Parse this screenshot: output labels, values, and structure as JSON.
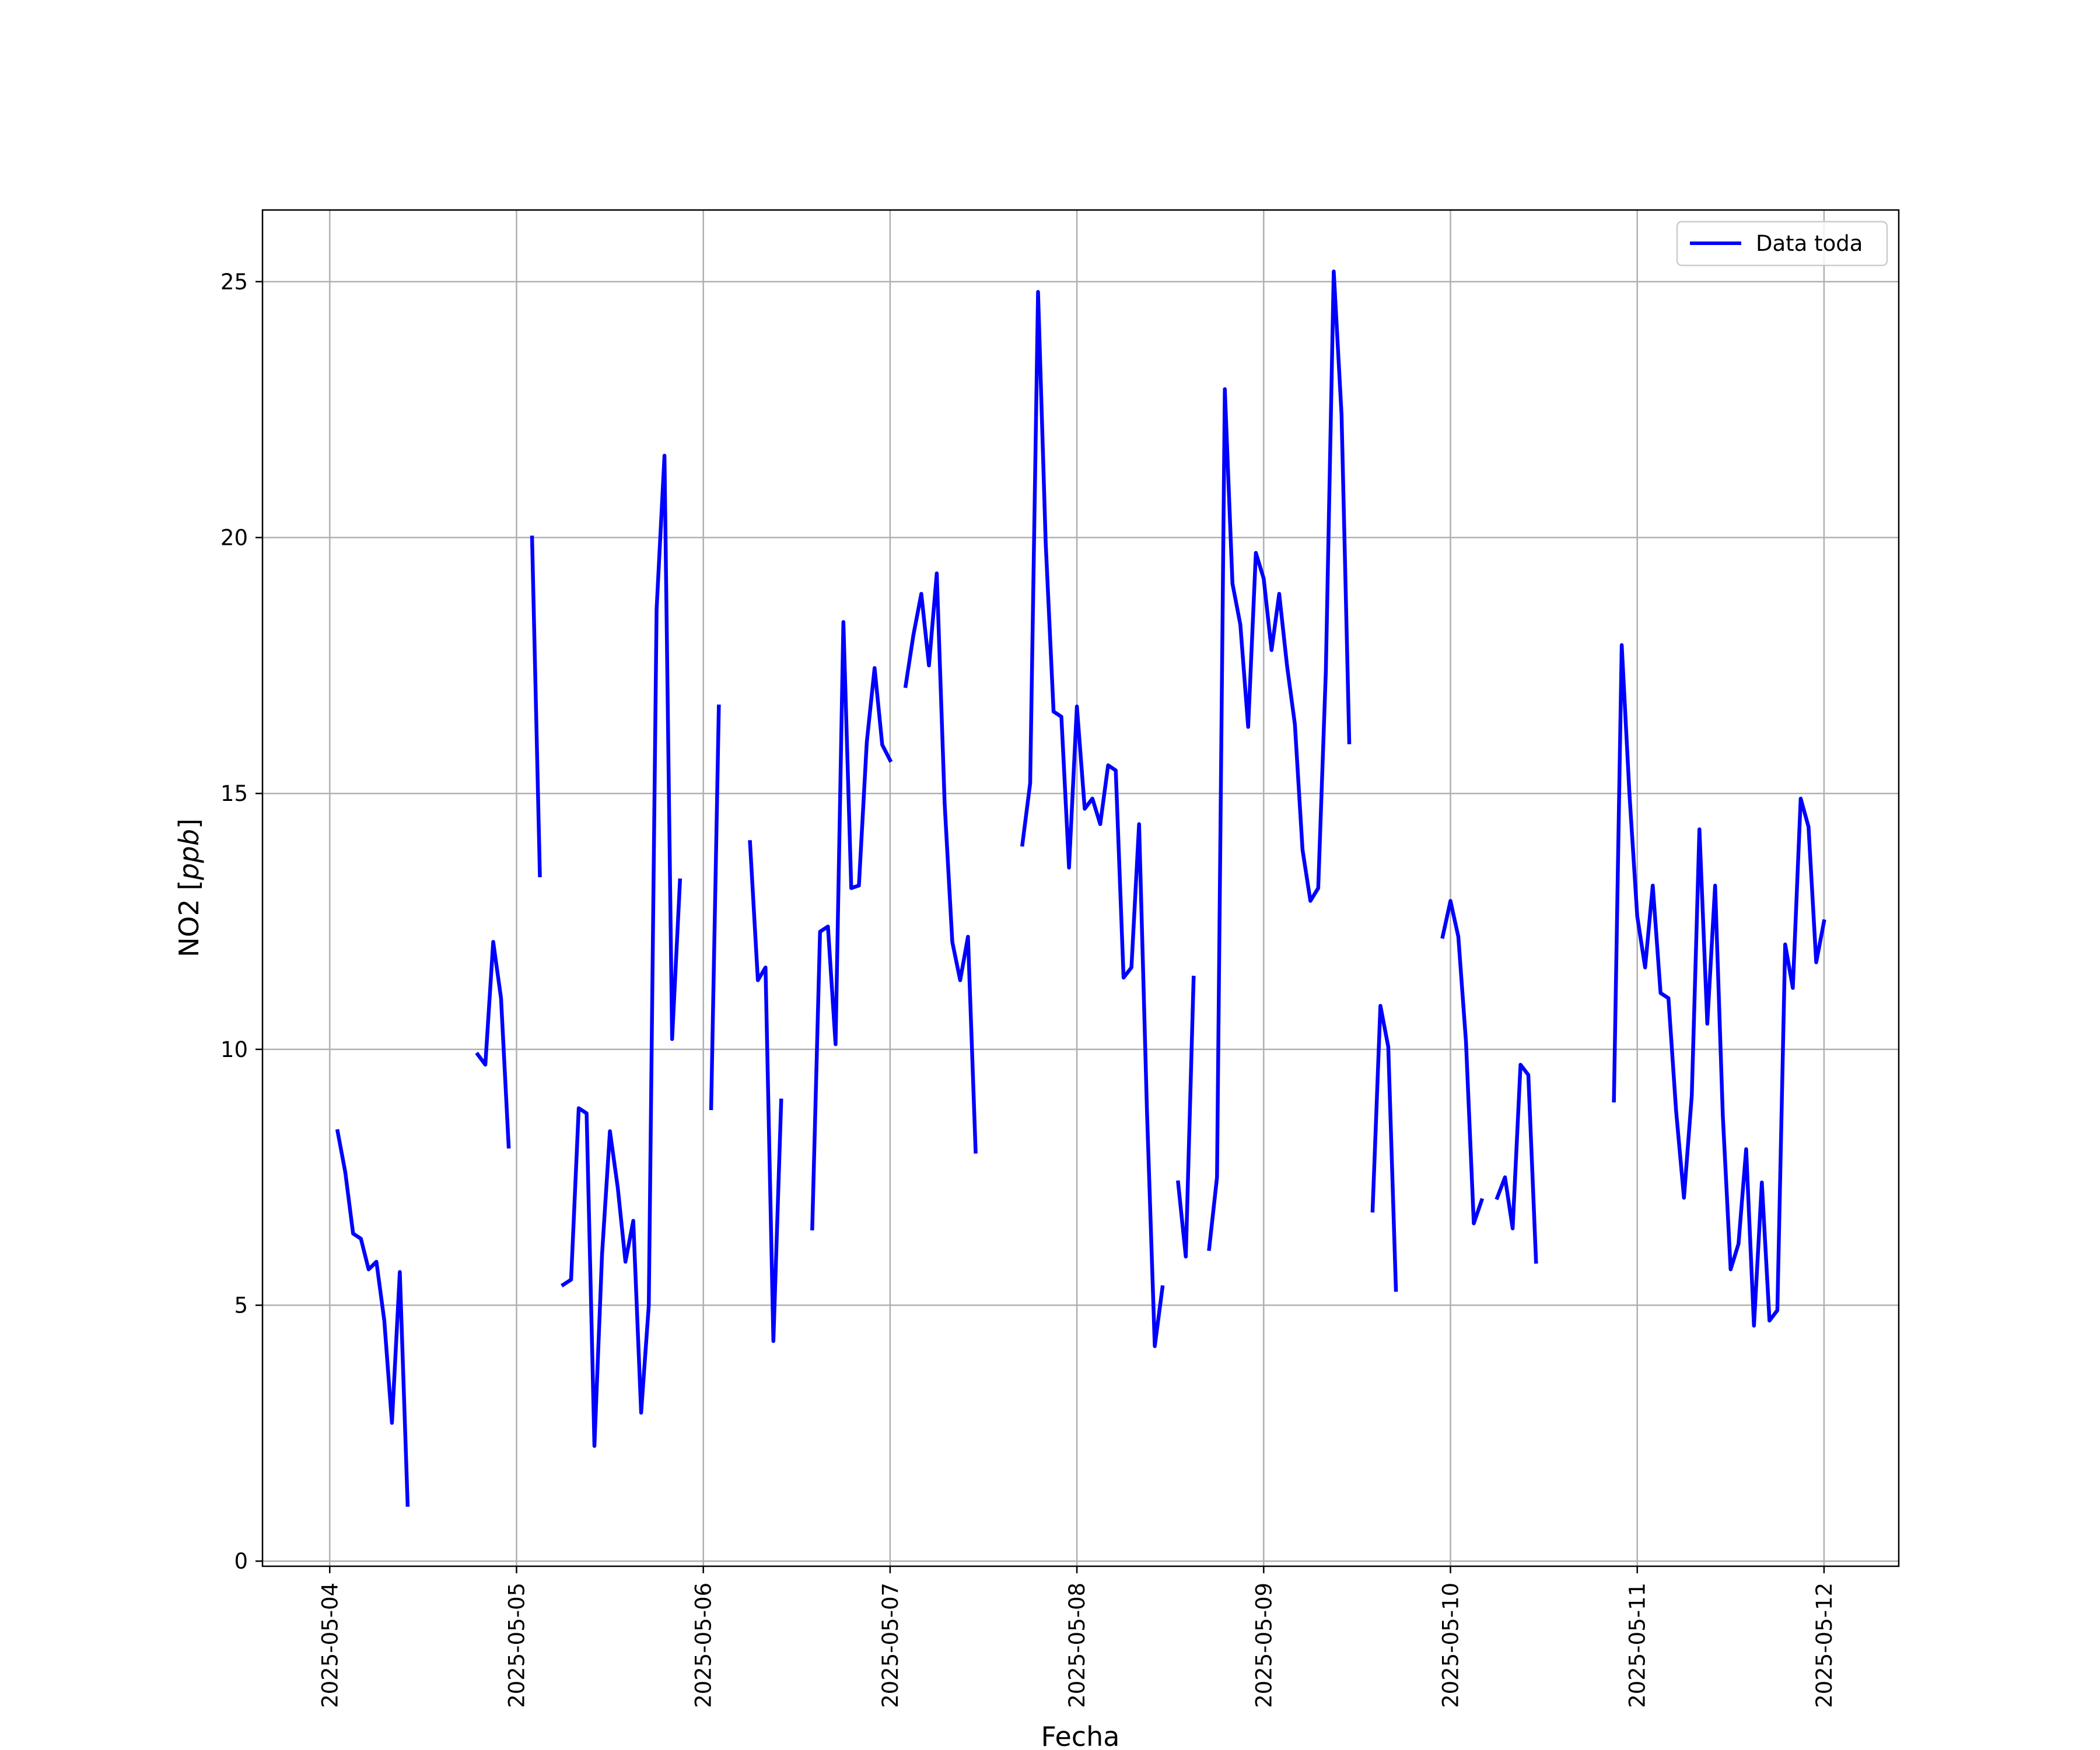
{
  "chart_data": {
    "type": "line",
    "title": "",
    "xlabel": "Fecha",
    "ylabel_prefix": "NO2 [",
    "ylabel_unit": "ppb",
    "ylabel_suffix": "]",
    "x_ticks": [
      "2025-05-04",
      "2025-05-05",
      "2025-05-06",
      "2025-05-07",
      "2025-05-08",
      "2025-05-09",
      "2025-05-10",
      "2025-05-11",
      "2025-05-12"
    ],
    "y_ticks": [
      0,
      5,
      10,
      15,
      20,
      25
    ],
    "x_range_days": [
      -0.36,
      8.4
    ],
    "ylim": [
      -0.1,
      26.4
    ],
    "grid": true,
    "legend": {
      "position": "top-right",
      "label": "Data toda"
    },
    "color": "#0000ff",
    "series": [
      {
        "name": "Data toda",
        "segments": [
          [
            [
              0.042,
              8.4
            ],
            [
              0.083,
              7.6
            ],
            [
              0.125,
              6.4
            ],
            [
              0.167,
              6.3
            ],
            [
              0.208,
              5.7
            ],
            [
              0.25,
              5.85
            ],
            [
              0.292,
              4.7
            ],
            [
              0.333,
              2.7
            ],
            [
              0.375,
              5.65
            ],
            [
              0.417,
              1.1
            ]
          ],
          [
            [
              0.792,
              9.9
            ],
            [
              0.833,
              9.7
            ],
            [
              0.875,
              12.1
            ],
            [
              0.917,
              11.0
            ],
            [
              0.958,
              8.1
            ]
          ],
          [
            [
              1.083,
              20.0
            ],
            [
              1.125,
              13.4
            ]
          ],
          [
            [
              1.25,
              5.4
            ],
            [
              1.292,
              5.5
            ],
            [
              1.333,
              8.85
            ],
            [
              1.375,
              8.75
            ],
            [
              1.417,
              2.25
            ],
            [
              1.458,
              6.0
            ],
            [
              1.5,
              8.4
            ],
            [
              1.542,
              7.3
            ],
            [
              1.583,
              5.85
            ],
            [
              1.625,
              6.65
            ],
            [
              1.667,
              2.9
            ],
            [
              1.708,
              5.0
            ],
            [
              1.75,
              18.6
            ],
            [
              1.792,
              21.6
            ],
            [
              1.833,
              10.2
            ],
            [
              1.875,
              13.3
            ]
          ],
          [
            [
              2.042,
              8.85
            ],
            [
              2.083,
              16.7
            ]
          ],
          [
            [
              2.25,
              14.05
            ],
            [
              2.292,
              11.35
            ],
            [
              2.333,
              11.6
            ],
            [
              2.375,
              4.3
            ],
            [
              2.417,
              9.0
            ]
          ],
          [
            [
              2.583,
              6.5
            ],
            [
              2.625,
              12.3
            ],
            [
              2.667,
              12.4
            ],
            [
              2.708,
              10.1
            ],
            [
              2.75,
              18.35
            ],
            [
              2.792,
              13.15
            ],
            [
              2.833,
              13.2
            ],
            [
              2.875,
              16.0
            ],
            [
              2.917,
              17.45
            ],
            [
              2.958,
              15.95
            ],
            [
              3.0,
              15.65
            ]
          ],
          [
            [
              3.083,
              17.1
            ],
            [
              3.125,
              18.1
            ],
            [
              3.167,
              18.9
            ],
            [
              3.208,
              17.5
            ],
            [
              3.25,
              19.3
            ],
            [
              3.292,
              14.8
            ],
            [
              3.333,
              12.1
            ],
            [
              3.375,
              11.35
            ],
            [
              3.417,
              12.2
            ],
            [
              3.458,
              8.0
            ]
          ],
          [
            [
              3.708,
              14.0
            ],
            [
              3.75,
              15.2
            ],
            [
              3.792,
              24.8
            ],
            [
              3.833,
              19.9
            ],
            [
              3.875,
              16.6
            ],
            [
              3.917,
              16.5
            ],
            [
              3.958,
              13.55
            ],
            [
              4.0,
              16.7
            ],
            [
              4.042,
              14.7
            ],
            [
              4.083,
              14.9
            ],
            [
              4.125,
              14.4
            ],
            [
              4.167,
              15.55
            ],
            [
              4.208,
              15.45
            ],
            [
              4.25,
              11.4
            ],
            [
              4.292,
              11.6
            ],
            [
              4.333,
              14.4
            ],
            [
              4.375,
              8.8
            ],
            [
              4.417,
              4.2
            ],
            [
              4.458,
              5.35
            ]
          ],
          [
            [
              4.542,
              7.4
            ],
            [
              4.583,
              5.95
            ],
            [
              4.625,
              11.4
            ]
          ],
          [
            [
              4.708,
              6.1
            ],
            [
              4.75,
              7.5
            ],
            [
              4.792,
              22.9
            ],
            [
              4.833,
              19.1
            ],
            [
              4.875,
              18.3
            ],
            [
              4.917,
              16.3
            ],
            [
              4.958,
              19.7
            ],
            [
              5.0,
              19.2
            ],
            [
              5.042,
              17.8
            ],
            [
              5.083,
              18.9
            ],
            [
              5.125,
              17.5
            ],
            [
              5.167,
              16.35
            ],
            [
              5.208,
              13.9
            ],
            [
              5.25,
              12.9
            ],
            [
              5.292,
              13.15
            ],
            [
              5.333,
              17.4
            ],
            [
              5.375,
              25.2
            ],
            [
              5.417,
              22.4
            ],
            [
              5.458,
              16.0
            ]
          ],
          [
            [
              5.583,
              6.85
            ],
            [
              5.625,
              10.85
            ],
            [
              5.667,
              10.05
            ],
            [
              5.708,
              5.3
            ]
          ],
          [
            [
              5.958,
              12.2
            ],
            [
              6.0,
              12.9
            ],
            [
              6.042,
              12.2
            ],
            [
              6.083,
              10.15
            ],
            [
              6.125,
              6.6
            ],
            [
              6.167,
              7.05
            ]
          ],
          [
            [
              6.25,
              7.1
            ],
            [
              6.292,
              7.5
            ],
            [
              6.333,
              6.5
            ],
            [
              6.375,
              9.7
            ],
            [
              6.417,
              9.5
            ],
            [
              6.458,
              5.85
            ]
          ],
          [
            [
              6.875,
              9.0
            ],
            [
              6.917,
              17.9
            ],
            [
              6.958,
              15.0
            ],
            [
              7.0,
              12.6
            ],
            [
              7.042,
              11.6
            ],
            [
              7.083,
              13.2
            ],
            [
              7.125,
              11.1
            ],
            [
              7.167,
              11.0
            ],
            [
              7.208,
              8.8
            ],
            [
              7.25,
              7.1
            ],
            [
              7.292,
              9.1
            ],
            [
              7.333,
              14.3
            ],
            [
              7.375,
              10.5
            ],
            [
              7.417,
              13.2
            ],
            [
              7.458,
              8.7
            ],
            [
              7.5,
              5.7
            ],
            [
              7.542,
              6.2
            ],
            [
              7.583,
              8.05
            ],
            [
              7.625,
              4.6
            ],
            [
              7.667,
              7.4
            ],
            [
              7.708,
              4.7
            ],
            [
              7.75,
              4.9
            ],
            [
              7.792,
              12.05
            ],
            [
              7.833,
              11.2
            ],
            [
              7.875,
              14.9
            ],
            [
              7.917,
              14.35
            ],
            [
              7.958,
              11.7
            ],
            [
              8.0,
              12.5
            ]
          ]
        ]
      }
    ]
  }
}
